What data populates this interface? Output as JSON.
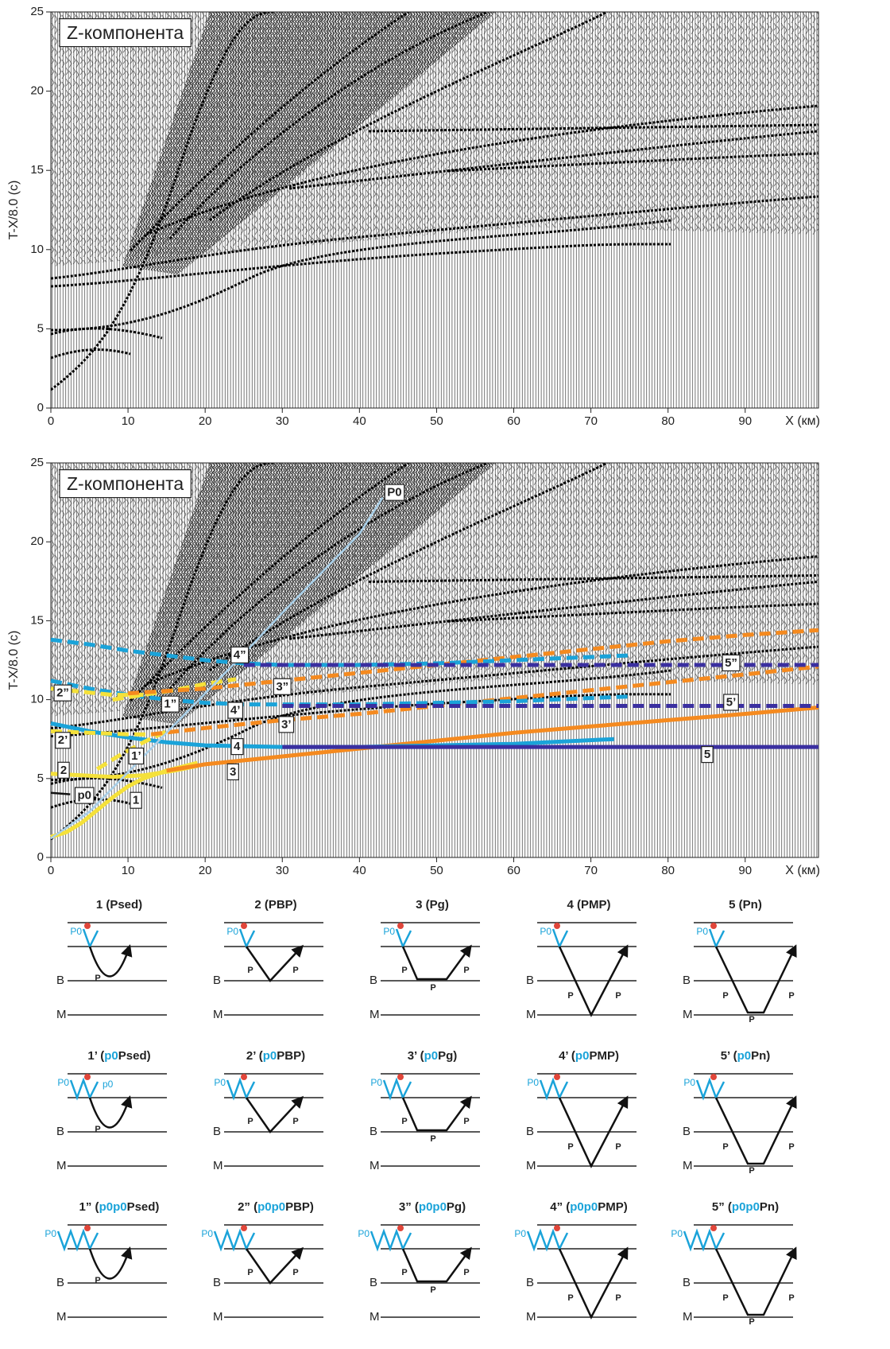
{
  "chart_data": [
    {
      "type": "seismogram",
      "annotation": "Z-компонента",
      "xlabel": "X (км)",
      "ylabel": "T-X/8.0 (c)",
      "xlim": [
        0,
        99.5
      ],
      "ylim": [
        0,
        25
      ],
      "xticks": [
        0,
        10,
        20,
        30,
        40,
        50,
        60,
        70,
        80,
        90
      ],
      "yticks": [
        0,
        5,
        10,
        15,
        20,
        25
      ]
    },
    {
      "type": "seismogram",
      "annotation": "Z-компонента",
      "xlabel": "X (км)",
      "ylabel": "T-X/8.0 (c)",
      "xlim": [
        0,
        99.5
      ],
      "ylim": [
        0,
        25
      ],
      "xticks": [
        0,
        10,
        20,
        30,
        40,
        50,
        60,
        70,
        80,
        90
      ],
      "yticks": [
        0,
        5,
        10,
        15,
        20,
        25
      ],
      "series": [
        {
          "name": "1",
          "color": "#f5e13a",
          "dashed": false,
          "x": [
            0,
            2,
            4,
            6,
            8,
            10,
            12,
            15,
            19
          ],
          "values": [
            1.3,
            1.6,
            2.2,
            3.0,
            3.8,
            4.5,
            5.0,
            5.5,
            6.0
          ]
        },
        {
          "name": "2",
          "color": "#f5e13a",
          "dashed": false,
          "x": [
            0,
            4,
            8,
            12,
            16,
            19
          ],
          "values": [
            5.3,
            5.2,
            5.1,
            5.2,
            5.5,
            5.8
          ]
        },
        {
          "name": "3",
          "color": "#f58a1f",
          "dashed": false,
          "x": [
            15,
            20,
            30,
            40,
            50,
            60,
            70,
            80,
            90,
            99.5
          ],
          "values": [
            5.5,
            5.9,
            6.4,
            6.9,
            7.4,
            7.9,
            8.3,
            8.7,
            9.1,
            9.5
          ]
        },
        {
          "name": "4",
          "color": "#1aa3d9",
          "dashed": false,
          "x": [
            0,
            5,
            10,
            15,
            20,
            30,
            40,
            50,
            60,
            73
          ],
          "values": [
            8.5,
            8.0,
            7.6,
            7.3,
            7.1,
            7.0,
            7.0,
            7.1,
            7.2,
            7.5
          ]
        },
        {
          "name": "5",
          "color": "#3a2fa0",
          "dashed": false,
          "x": [
            30,
            99.5
          ],
          "values": [
            7.0,
            7.0
          ]
        },
        {
          "name": "1’",
          "color": "#f5e13a",
          "dashed": true,
          "x": [
            6,
            9,
            12,
            15
          ],
          "values": [
            5.6,
            6.5,
            7.3,
            8.0
          ]
        },
        {
          "name": "2’",
          "color": "#f5e13a",
          "dashed": true,
          "x": [
            0,
            5,
            10,
            14
          ],
          "values": [
            8.0,
            7.9,
            7.8,
            7.8
          ]
        },
        {
          "name": "3’",
          "color": "#f58a1f",
          "dashed": true,
          "x": [
            13,
            20,
            30,
            40,
            50,
            60,
            70,
            80,
            90,
            99.5
          ],
          "values": [
            7.8,
            8.2,
            8.7,
            9.1,
            9.6,
            10.1,
            10.6,
            11.1,
            11.6,
            12.1
          ]
        },
        {
          "name": "4’",
          "color": "#1aa3d9",
          "dashed": true,
          "x": [
            0,
            5,
            10,
            15,
            20,
            25,
            30,
            40,
            50,
            60,
            75
          ],
          "values": [
            11.2,
            10.7,
            10.3,
            10.0,
            9.8,
            9.7,
            9.7,
            9.7,
            9.8,
            9.9,
            10.2
          ]
        },
        {
          "name": "5’",
          "color": "#3a2fa0",
          "dashed": true,
          "x": [
            30,
            99.5
          ],
          "values": [
            9.6,
            9.6
          ]
        },
        {
          "name": "1”",
          "color": "#f5e13a",
          "dashed": true,
          "x": [
            8,
            12,
            16,
            20,
            24
          ],
          "values": [
            10.0,
            10.3,
            10.6,
            11.0,
            11.3
          ]
        },
        {
          "name": "2”",
          "color": "#f5e13a",
          "dashed": true,
          "x": [
            0,
            4,
            8,
            12
          ],
          "values": [
            10.7,
            10.5,
            10.3,
            10.3
          ]
        },
        {
          "name": "3”",
          "color": "#f58a1f",
          "dashed": true,
          "x": [
            10,
            20,
            30,
            40,
            50,
            60,
            70,
            80,
            90,
            99.5
          ],
          "values": [
            10.4,
            10.7,
            11.2,
            11.7,
            12.2,
            12.7,
            13.2,
            13.7,
            14.1,
            14.4
          ]
        },
        {
          "name": "4”",
          "color": "#1aa3d9",
          "dashed": true,
          "x": [
            0,
            5,
            10,
            15,
            20,
            25,
            30,
            40,
            50,
            60,
            75
          ],
          "values": [
            13.8,
            13.5,
            13.1,
            12.8,
            12.5,
            12.3,
            12.2,
            12.2,
            12.3,
            12.5,
            12.8
          ]
        },
        {
          "name": "5”",
          "color": "#3a2fa0",
          "dashed": true,
          "x": [
            25,
            99.5
          ],
          "values": [
            12.2,
            12.2
          ]
        },
        {
          "name": "P0",
          "color": "#a9cfe8",
          "dashed": false,
          "x": [
            0,
            5,
            10,
            15,
            20,
            25,
            30,
            35,
            40,
            43
          ],
          "values": [
            1.2,
            2.9,
            5.4,
            7.9,
            10.4,
            12.9,
            15.5,
            18.0,
            20.5,
            22.8
          ]
        },
        {
          "name": "p0",
          "color": "#111111",
          "dashed": false,
          "x": [
            0,
            2.5
          ],
          "values": [
            4.1,
            4.0
          ]
        }
      ]
    }
  ],
  "ray_diagrams": [
    {
      "title": [
        "1 (",
        "Psed)"
      ],
      "source": "P0",
      "rays": [
        "P"
      ],
      "boundaries": [
        "B",
        "M"
      ]
    },
    {
      "title": [
        "2 (",
        "PBP)"
      ],
      "source": "P0",
      "rays": [
        "P",
        "P"
      ],
      "boundaries": [
        "B",
        "M"
      ]
    },
    {
      "title": [
        "3 (",
        "Pg)"
      ],
      "source": "P0",
      "rays": [
        "P",
        "P",
        "P"
      ],
      "boundaries": [
        "B",
        "M"
      ]
    },
    {
      "title": [
        "4 (",
        "PMP)"
      ],
      "source": "P0",
      "rays": [
        "P",
        "P"
      ],
      "boundaries": [
        "B",
        "M"
      ]
    },
    {
      "title": [
        "5 (",
        "Pn)"
      ],
      "source": "P0",
      "rays": [
        "P",
        "P",
        "P"
      ],
      "boundaries": [
        "B",
        "M"
      ]
    },
    {
      "title": [
        "1’ (",
        "p0",
        "Psed)"
      ],
      "source": "P0",
      "multiple": "p0",
      "rays": [
        "P"
      ],
      "boundaries": [
        "B",
        "M"
      ]
    },
    {
      "title": [
        "2’ (",
        "p0",
        "PBP)"
      ],
      "source": "P0",
      "rays": [
        "P",
        "P"
      ],
      "boundaries": [
        "B",
        "M"
      ]
    },
    {
      "title": [
        "3’ (",
        "p0",
        "Pg)"
      ],
      "source": "P0",
      "rays": [
        "P",
        "P",
        "P"
      ],
      "boundaries": [
        "B",
        "M"
      ]
    },
    {
      "title": [
        "4’ (",
        "p0",
        "PMP)"
      ],
      "source": "P0",
      "rays": [
        "P",
        "P"
      ],
      "boundaries": [
        "B",
        "M"
      ]
    },
    {
      "title": [
        "5’ (",
        "p0",
        "Pn)"
      ],
      "source": "P0",
      "rays": [
        "P",
        "P",
        "P"
      ],
      "boundaries": [
        "B",
        "M"
      ]
    },
    {
      "title": [
        "1” (",
        "p0p0",
        "Psed)"
      ],
      "source": "P0",
      "rays": [
        "P"
      ],
      "boundaries": [
        "B",
        "M"
      ]
    },
    {
      "title": [
        "2” (",
        "p0p0",
        "PBP)"
      ],
      "source": "P0",
      "rays": [
        "P",
        "P"
      ],
      "boundaries": [
        "B",
        "M"
      ]
    },
    {
      "title": [
        "3” (",
        "p0p0",
        "Pg)"
      ],
      "source": "P0",
      "rays": [
        "P",
        "P",
        "P"
      ],
      "boundaries": [
        "B",
        "M"
      ]
    },
    {
      "title": [
        "4” (",
        "p0p0",
        "PMP)"
      ],
      "source": "P0",
      "rays": [
        "P",
        "P"
      ],
      "boundaries": [
        "B",
        "M"
      ]
    },
    {
      "title": [
        "5” (",
        "p0p0",
        "Pn)"
      ],
      "source": "P0",
      "rays": [
        "P",
        "P",
        "P"
      ],
      "boundaries": [
        "B",
        "M"
      ]
    }
  ]
}
